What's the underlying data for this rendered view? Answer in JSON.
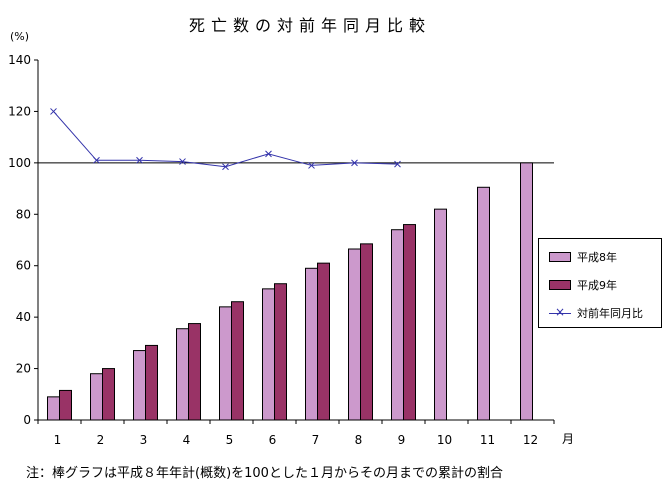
{
  "chart_data": {
    "type": "bar",
    "title": "死亡数の対前年同月比較",
    "ylabel": "(%)",
    "xunit": "月",
    "note": "注：棒グラフは平成８年年計(概数)を100とした１月からその月までの累計の割合",
    "categories": [
      "1",
      "2",
      "3",
      "4",
      "5",
      "6",
      "7",
      "8",
      "9",
      "10",
      "11",
      "12"
    ],
    "ylim": [
      0,
      140
    ],
    "yticks": [
      0,
      20,
      40,
      60,
      80,
      100,
      120,
      140
    ],
    "reference_line": 100,
    "grid": false,
    "legend_position": "right",
    "series": [
      {
        "name": "平成8年",
        "type": "bar",
        "color": "#cc99cc",
        "values": [
          9,
          18,
          27,
          35.5,
          44,
          51,
          59,
          66.5,
          74,
          82,
          90.5,
          100
        ]
      },
      {
        "name": "平成9年",
        "type": "bar",
        "color": "#993366",
        "values": [
          11.5,
          20,
          29,
          37.5,
          46,
          53,
          61,
          68.5,
          76,
          null,
          null,
          null
        ]
      },
      {
        "name": "対前年同月比",
        "type": "line",
        "color": "#3333aa",
        "marker": "x",
        "values": [
          120,
          101,
          101,
          100.5,
          98.5,
          103.5,
          99,
          100,
          99.5,
          null,
          null,
          null
        ]
      }
    ]
  }
}
